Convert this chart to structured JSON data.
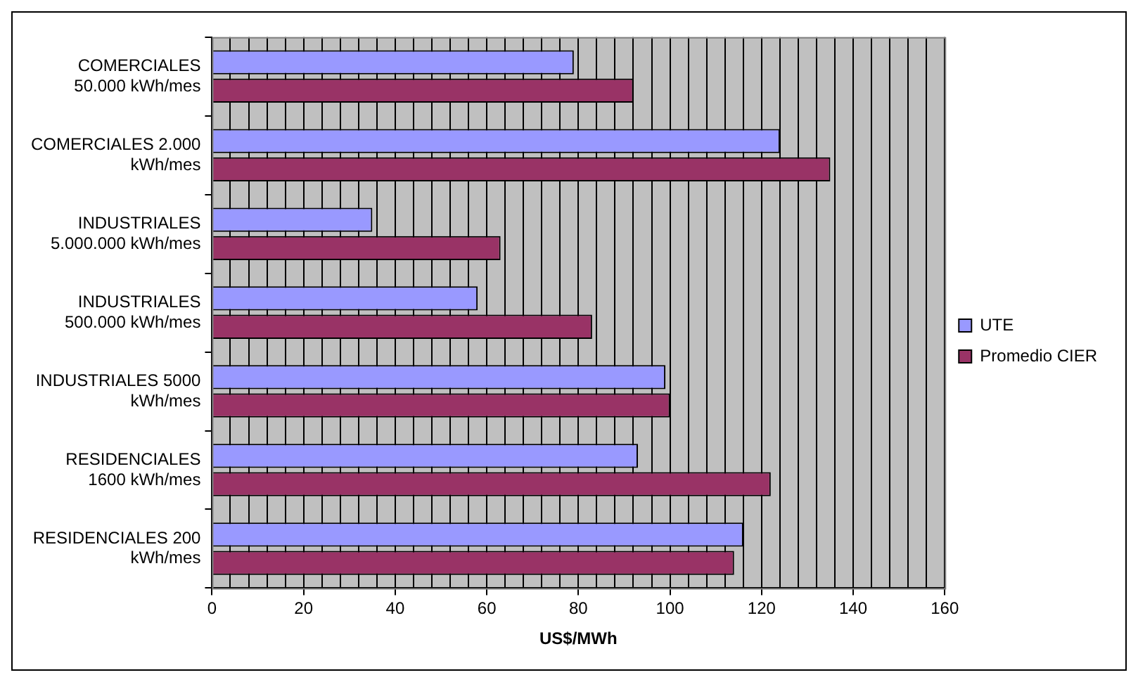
{
  "chart_data": {
    "type": "bar",
    "orientation": "horizontal",
    "xlabel": "US$/MWh",
    "categories": [
      "COMERCIALES 50.000 kWh/mes",
      "COMERCIALES 2.000 kWh/mes",
      "INDUSTRIALES 5.000.000 kWh/mes",
      "INDUSTRIALES 500.000 kWh/mes",
      "INDUSTRIALES 5000 kWh/mes",
      "RESIDENCIALES 1600 kWh/mes",
      "RESIDENCIALES 200 kWh/mes"
    ],
    "series": [
      {
        "name": "UTE",
        "color": "#9999ff",
        "values": [
          79,
          124,
          35,
          58,
          99,
          93,
          116
        ]
      },
      {
        "name": "Promedio CIER",
        "color": "#993366",
        "values": [
          92,
          135,
          63,
          83,
          100,
          122,
          114
        ]
      }
    ],
    "xlim": [
      0,
      160
    ],
    "xticks": [
      0,
      {
        "value": 4,
        "label": null
      },
      {
        "value": 8,
        "label": null
      },
      {
        "value": 12,
        "label": null
      },
      {
        "value": 16,
        "label": null
      },
      20,
      {
        "value": 24,
        "label": null
      },
      {
        "value": 28,
        "label": null
      },
      {
        "value": 32,
        "label": null
      },
      {
        "value": 36,
        "label": null
      },
      40,
      {
        "value": 44,
        "label": null
      },
      {
        "value": 48,
        "label": null
      },
      {
        "value": 52,
        "label": null
      },
      {
        "value": 56,
        "label": null
      },
      60,
      {
        "value": 64,
        "label": null
      },
      {
        "value": 68,
        "label": null
      },
      {
        "value": 72,
        "label": null
      },
      {
        "value": 76,
        "label": null
      },
      80,
      {
        "value": 84,
        "label": null
      },
      {
        "value": 88,
        "label": null
      },
      {
        "value": 92,
        "label": null
      },
      {
        "value": 96,
        "label": null
      },
      100,
      {
        "value": 104,
        "label": null
      },
      {
        "value": 108,
        "label": null
      },
      {
        "value": 112,
        "label": null
      },
      {
        "value": 116,
        "label": null
      },
      120,
      {
        "value": 124,
        "label": null
      },
      {
        "value": 128,
        "label": null
      },
      {
        "value": 132,
        "label": null
      },
      {
        "value": 136,
        "label": null
      },
      140,
      {
        "value": 144,
        "label": null
      },
      {
        "value": 148,
        "label": null
      },
      {
        "value": 152,
        "label": null
      },
      {
        "value": 156,
        "label": null
      },
      160
    ],
    "grid": "x",
    "legend": "right"
  }
}
